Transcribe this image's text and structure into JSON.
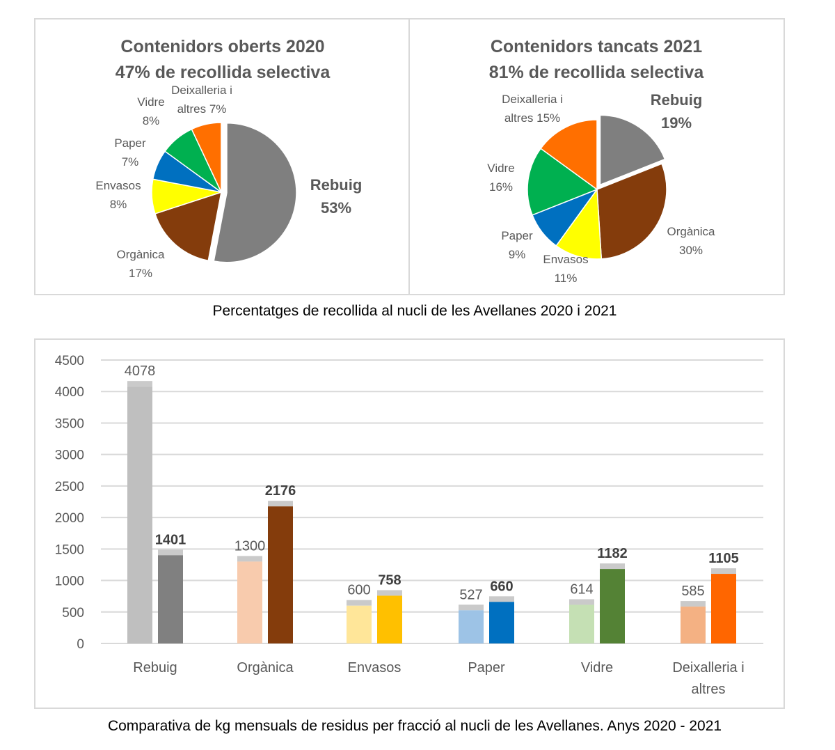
{
  "chart_data": [
    {
      "type": "pie",
      "title": "Contenidors oberts 2020",
      "subtitle": "47% de recollida selectiva",
      "slices": [
        {
          "name": "Rebuig",
          "value": 53,
          "color": "#7f7f7f",
          "label_lines": [
            "Rebuig",
            "53%"
          ],
          "bold": true,
          "exploded": true
        },
        {
          "name": "Orgànica",
          "value": 17,
          "color": "#843c0c",
          "label_lines": [
            "Orgànica",
            "17%"
          ]
        },
        {
          "name": "Envasos",
          "value": 8,
          "color": "#ffff00",
          "label_lines": [
            "Envasos",
            "8%"
          ]
        },
        {
          "name": "Paper",
          "value": 7,
          "color": "#0070c0",
          "label_lines": [
            "Paper",
            "7%"
          ]
        },
        {
          "name": "Vidre",
          "value": 8,
          "color": "#00b050",
          "label_lines": [
            "Vidre",
            "8%"
          ]
        },
        {
          "name": "Deixalleria i altres",
          "value": 7,
          "color": "#ff6f00",
          "label_lines": [
            "Deixalleria i",
            "altres 7%"
          ]
        }
      ]
    },
    {
      "type": "pie",
      "title": "Contenidors tancats 2021",
      "subtitle": "81% de recollida selectiva",
      "slices": [
        {
          "name": "Rebuig",
          "value": 19,
          "color": "#7f7f7f",
          "label_lines": [
            "Rebuig",
            "19%"
          ],
          "bold": true,
          "exploded": true
        },
        {
          "name": "Orgànica",
          "value": 30,
          "color": "#843c0c",
          "label_lines": [
            "Orgànica",
            "30%"
          ]
        },
        {
          "name": "Envasos",
          "value": 11,
          "color": "#ffff00",
          "label_lines": [
            "Envasos",
            "11%"
          ]
        },
        {
          "name": "Paper",
          "value": 9,
          "color": "#0070c0",
          "label_lines": [
            "Paper",
            "9%"
          ]
        },
        {
          "name": "Vidre",
          "value": 16,
          "color": "#00b050",
          "label_lines": [
            "Vidre",
            "16%"
          ]
        },
        {
          "name": "Deixalleria i altres",
          "value": 15,
          "color": "#ff6f00",
          "label_lines": [
            "Deixalleria i",
            "altres 15%"
          ]
        }
      ]
    },
    {
      "type": "bar",
      "title": "",
      "categories": [
        "Rebuig",
        "Orgànica",
        "Envasos",
        "Paper",
        "Vidre",
        "Deixalleria i altres"
      ],
      "category_lines": [
        [
          "Rebuig"
        ],
        [
          "Orgànica"
        ],
        [
          "Envasos"
        ],
        [
          "Paper"
        ],
        [
          "Vidre"
        ],
        [
          "Deixalleria i",
          "altres"
        ]
      ],
      "series": [
        {
          "name": "2020",
          "values": [
            4078,
            1300,
            600,
            527,
            614,
            585
          ],
          "colors": [
            "#bfbfbf",
            "#f8cbad",
            "#ffe699",
            "#9dc3e6",
            "#c5e0b4",
            "#f4b183"
          ],
          "bold_labels": false
        },
        {
          "name": "2021",
          "values": [
            1401,
            2176,
            758,
            660,
            1182,
            1105
          ],
          "colors": [
            "#808080",
            "#843c0c",
            "#ffc000",
            "#0070c0",
            "#548235",
            "#ff6600"
          ],
          "bold_labels": true
        }
      ],
      "ylim": [
        0,
        4500
      ],
      "yticks": [
        0,
        500,
        1000,
        1500,
        2000,
        2500,
        3000,
        3500,
        4000,
        4500
      ],
      "grid": true,
      "xlabel": "",
      "ylabel": ""
    }
  ],
  "captions": {
    "pies": "Percentatges de recollida al nucli de les Avellanes 2020 i 2021",
    "bars": "Comparativa de kg mensuals de residus per fracció al nucli de les Avellanes. Anys 2020 - 2021"
  }
}
